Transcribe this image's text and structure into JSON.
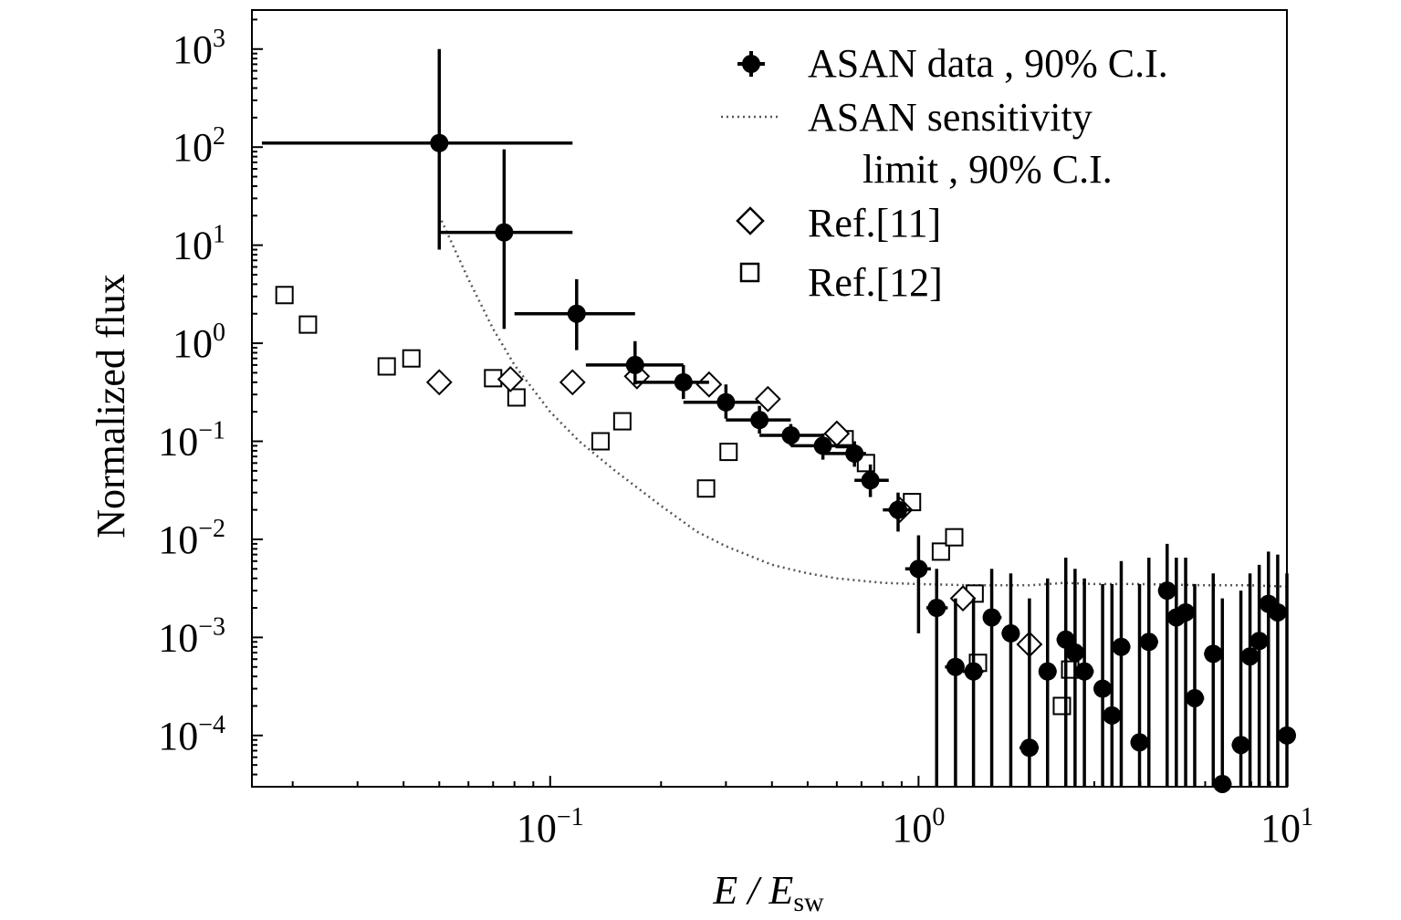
{
  "chart_data": {
    "type": "scatter",
    "xlabel": "E / E_sw",
    "xlabel_main": "E / E",
    "xlabel_sub": "sw",
    "ylabel": "Normalized flux",
    "xscale": "log",
    "yscale": "log",
    "xlim": [
      0.0155,
      10
    ],
    "ylim": [
      3e-05,
      2500
    ],
    "x_ticks": [
      {
        "base": "10",
        "exp": "−1",
        "value": 0.1
      },
      {
        "base": "10",
        "exp": "0",
        "value": 1
      },
      {
        "base": "10",
        "exp": "1",
        "value": 10
      }
    ],
    "y_ticks": [
      {
        "base": "10",
        "exp": "3",
        "value": 1000
      },
      {
        "base": "10",
        "exp": "2",
        "value": 100
      },
      {
        "base": "10",
        "exp": "1",
        "value": 10
      },
      {
        "base": "10",
        "exp": "0",
        "value": 1
      },
      {
        "base": "10",
        "exp": "−1",
        "value": 0.1
      },
      {
        "base": "10",
        "exp": "−2",
        "value": 0.01
      },
      {
        "base": "10",
        "exp": "−3",
        "value": 0.001
      },
      {
        "base": "10",
        "exp": "−4",
        "value": 0.0001
      }
    ],
    "legend_position": "top-right",
    "series": [
      {
        "name": "ASAN data , 90% C.I.",
        "marker": "filled-circle",
        "points": [
          {
            "x": 0.05,
            "y": 110,
            "xlo": 0.0165,
            "xhi": 0.115,
            "ylo": 9,
            "yhi": 1000
          },
          {
            "x": 0.075,
            "y": 13.5,
            "xlo": 0.05,
            "xhi": 0.115,
            "ylo": 1.4,
            "yhi": 95
          },
          {
            "x": 0.118,
            "y": 2.0,
            "xlo": 0.08,
            "xhi": 0.17,
            "ylo": 0.85,
            "yhi": 4.5
          },
          {
            "x": 0.17,
            "y": 0.6,
            "xlo": 0.125,
            "xhi": 0.23,
            "ylo": 0.38,
            "yhi": 1.05
          },
          {
            "x": 0.23,
            "y": 0.4,
            "xlo": 0.17,
            "xhi": 0.27,
            "ylo": 0.27,
            "yhi": 0.6
          },
          {
            "x": 0.3,
            "y": 0.25,
            "xlo": 0.23,
            "xhi": 0.37,
            "ylo": 0.17,
            "yhi": 0.38
          },
          {
            "x": 0.37,
            "y": 0.165,
            "xlo": 0.3,
            "xhi": 0.45,
            "ylo": 0.12,
            "yhi": 0.23
          },
          {
            "x": 0.45,
            "y": 0.115,
            "xlo": 0.37,
            "xhi": 0.55,
            "ylo": 0.09,
            "yhi": 0.15
          },
          {
            "x": 0.55,
            "y": 0.09,
            "xlo": 0.45,
            "xhi": 0.67,
            "ylo": 0.065,
            "yhi": 0.12
          },
          {
            "x": 0.67,
            "y": 0.075,
            "xlo": 0.55,
            "xhi": 0.72,
            "ylo": 0.055,
            "yhi": 0.1
          },
          {
            "x": 0.74,
            "y": 0.04,
            "xlo": 0.67,
            "xhi": 0.83,
            "ylo": 0.027,
            "yhi": 0.058
          },
          {
            "x": 0.88,
            "y": 0.02,
            "xlo": 0.8,
            "xhi": 0.95,
            "ylo": 0.012,
            "yhi": 0.03
          },
          {
            "x": 1.0,
            "y": 0.005,
            "xlo": 0.92,
            "xhi": 1.08,
            "ylo": 0.0011,
            "yhi": 0.011
          },
          {
            "x": 1.12,
            "y": 0.002,
            "xlo": 1.05,
            "xhi": 1.2,
            "ylo": 3e-05,
            "yhi": 0.005
          },
          {
            "x": 1.26,
            "y": 0.0005,
            "xlo": 1.18,
            "xhi": 1.32,
            "ylo": 3e-05,
            "yhi": 0.0025
          },
          {
            "x": 1.41,
            "y": 0.00045,
            "xlo": 1.32,
            "xhi": 1.5,
            "ylo": 3e-05,
            "yhi": 0.0025
          },
          {
            "x": 1.58,
            "y": 0.0016,
            "xlo": 1.5,
            "xhi": 1.68,
            "ylo": 3e-05,
            "yhi": 0.005
          },
          {
            "x": 1.78,
            "y": 0.0011,
            "xlo": 1.68,
            "xhi": 1.88,
            "ylo": 3e-05,
            "yhi": 0.0045
          },
          {
            "x": 2.0,
            "y": 7.5e-05,
            "xlo": 1.88,
            "xhi": 2.12,
            "ylo": 3e-05,
            "yhi": 0.0025
          },
          {
            "x": 2.24,
            "y": 0.00045,
            "xlo": 2.12,
            "xhi": 2.37,
            "ylo": 3e-05,
            "yhi": 0.004
          },
          {
            "x": 2.51,
            "y": 0.00095,
            "xlo": 2.37,
            "xhi": 2.66,
            "ylo": 3e-05,
            "yhi": 0.0065
          },
          {
            "x": 2.66,
            "y": 0.0007,
            "xlo": 2.51,
            "xhi": 2.82,
            "ylo": 3e-05,
            "yhi": 0.005
          },
          {
            "x": 2.82,
            "y": 0.00045,
            "xlo": 2.66,
            "xhi": 2.99,
            "ylo": 3e-05,
            "yhi": 0.004
          },
          {
            "x": 3.16,
            "y": 0.0003,
            "xlo": 2.99,
            "xhi": 3.35,
            "ylo": 3e-05,
            "yhi": 0.0035
          },
          {
            "x": 3.35,
            "y": 0.00016,
            "xlo": 3.16,
            "xhi": 3.55,
            "ylo": 3e-05,
            "yhi": 0.0035
          },
          {
            "x": 3.55,
            "y": 0.0008,
            "xlo": 3.35,
            "xhi": 3.76,
            "ylo": 3e-05,
            "yhi": 0.006
          },
          {
            "x": 3.98,
            "y": 8.5e-05,
            "xlo": 3.76,
            "xhi": 4.22,
            "ylo": 3e-05,
            "yhi": 0.0035
          },
          {
            "x": 4.22,
            "y": 0.0009,
            "xlo": 3.98,
            "xhi": 4.47,
            "ylo": 3e-05,
            "yhi": 0.0065
          },
          {
            "x": 4.73,
            "y": 0.003,
            "xlo": 4.47,
            "xhi": 5.01,
            "ylo": 3e-05,
            "yhi": 0.009
          },
          {
            "x": 5.01,
            "y": 0.0016,
            "xlo": 4.73,
            "xhi": 5.31,
            "ylo": 3e-05,
            "yhi": 0.0065
          },
          {
            "x": 5.31,
            "y": 0.0018,
            "xlo": 5.01,
            "xhi": 5.62,
            "ylo": 3e-05,
            "yhi": 0.0065
          },
          {
            "x": 5.62,
            "y": 0.00024,
            "xlo": 5.31,
            "xhi": 5.96,
            "ylo": 3e-05,
            "yhi": 0.0035
          },
          {
            "x": 6.31,
            "y": 0.00068,
            "xlo": 5.96,
            "xhi": 6.68,
            "ylo": 3e-05,
            "yhi": 0.0045
          },
          {
            "x": 6.68,
            "y": 3.2e-05,
            "xlo": 6.31,
            "xhi": 7.08,
            "ylo": 3e-05,
            "yhi": 0.0025
          },
          {
            "x": 7.5,
            "y": 8e-05,
            "xlo": 7.08,
            "xhi": 7.94,
            "ylo": 3e-05,
            "yhi": 0.003
          },
          {
            "x": 7.94,
            "y": 0.00064,
            "xlo": 7.5,
            "xhi": 8.41,
            "ylo": 3e-05,
            "yhi": 0.0045
          },
          {
            "x": 8.41,
            "y": 0.00092,
            "xlo": 7.94,
            "xhi": 8.91,
            "ylo": 3e-05,
            "yhi": 0.0055
          },
          {
            "x": 8.91,
            "y": 0.0022,
            "xlo": 8.41,
            "xhi": 9.44,
            "ylo": 3e-05,
            "yhi": 0.0075
          },
          {
            "x": 9.44,
            "y": 0.0018,
            "xlo": 8.91,
            "xhi": 10,
            "ylo": 3e-05,
            "yhi": 0.007
          },
          {
            "x": 10.0,
            "y": 0.0001,
            "xlo": 9.44,
            "xhi": 10,
            "ylo": 3e-05,
            "yhi": 0.0045
          }
        ]
      },
      {
        "name": "ASAN sensitivity limit , 90% C.I.",
        "legend_line1": "ASAN sensitivity",
        "legend_line2": "limit , 90% C.I.",
        "marker": "dotted-line",
        "points": [
          {
            "x": 0.05,
            "y": 20
          },
          {
            "x": 0.06,
            "y": 4.5
          },
          {
            "x": 0.07,
            "y": 1.4
          },
          {
            "x": 0.08,
            "y": 0.6
          },
          {
            "x": 0.1,
            "y": 0.2
          },
          {
            "x": 0.12,
            "y": 0.1
          },
          {
            "x": 0.15,
            "y": 0.05
          },
          {
            "x": 0.2,
            "y": 0.022
          },
          {
            "x": 0.25,
            "y": 0.012
          },
          {
            "x": 0.3,
            "y": 0.0085
          },
          {
            "x": 0.4,
            "y": 0.0055
          },
          {
            "x": 0.5,
            "y": 0.0045
          },
          {
            "x": 0.6,
            "y": 0.004
          },
          {
            "x": 0.8,
            "y": 0.0036
          },
          {
            "x": 1.0,
            "y": 0.0035
          },
          {
            "x": 1.4,
            "y": 0.0034
          },
          {
            "x": 2.0,
            "y": 0.0034
          },
          {
            "x": 2.5,
            "y": 0.0036
          },
          {
            "x": 3.0,
            "y": 0.0035
          },
          {
            "x": 4.0,
            "y": 0.0035
          },
          {
            "x": 6.0,
            "y": 0.0034
          },
          {
            "x": 8.0,
            "y": 0.0034
          },
          {
            "x": 10.0,
            "y": 0.0033
          }
        ]
      },
      {
        "name": "Ref.[11]",
        "marker": "open-diamond",
        "points": [
          {
            "x": 0.05,
            "y": 0.4
          },
          {
            "x": 0.078,
            "y": 0.43
          },
          {
            "x": 0.115,
            "y": 0.4
          },
          {
            "x": 0.172,
            "y": 0.46
          },
          {
            "x": 0.27,
            "y": 0.38
          },
          {
            "x": 0.39,
            "y": 0.27
          },
          {
            "x": 0.6,
            "y": 0.12
          },
          {
            "x": 0.89,
            "y": 0.02
          },
          {
            "x": 1.32,
            "y": 0.0025
          },
          {
            "x": 2.0,
            "y": 0.00085
          }
        ]
      },
      {
        "name": "Ref.[12]",
        "marker": "open-square",
        "points": [
          {
            "x": 0.019,
            "y": 3.1
          },
          {
            "x": 0.022,
            "y": 1.55
          },
          {
            "x": 0.036,
            "y": 0.58
          },
          {
            "x": 0.042,
            "y": 0.7
          },
          {
            "x": 0.07,
            "y": 0.44
          },
          {
            "x": 0.081,
            "y": 0.28
          },
          {
            "x": 0.137,
            "y": 0.1
          },
          {
            "x": 0.157,
            "y": 0.16
          },
          {
            "x": 0.265,
            "y": 0.033
          },
          {
            "x": 0.305,
            "y": 0.078
          },
          {
            "x": 0.63,
            "y": 0.105
          },
          {
            "x": 0.72,
            "y": 0.06
          },
          {
            "x": 0.96,
            "y": 0.024
          },
          {
            "x": 1.15,
            "y": 0.0075
          },
          {
            "x": 1.25,
            "y": 0.0105
          },
          {
            "x": 1.42,
            "y": 0.0028
          },
          {
            "x": 1.45,
            "y": 0.00055
          },
          {
            "x": 2.45,
            "y": 0.0002
          },
          {
            "x": 2.58,
            "y": 0.00047
          }
        ]
      }
    ]
  }
}
